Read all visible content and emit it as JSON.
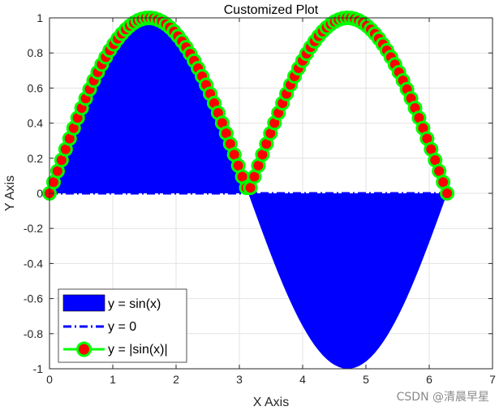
{
  "chart_data": {
    "type": "line",
    "title": "Customized Plot",
    "xlabel": "X Axis",
    "ylabel": "Y Axis",
    "xlim": [
      0,
      7
    ],
    "ylim": [
      -1,
      1
    ],
    "xticks": [
      "0",
      "1",
      "2",
      "3",
      "4",
      "5",
      "6",
      "7"
    ],
    "yticks": [
      "-1",
      "-0.8",
      "-0.6",
      "-0.4",
      "-0.2",
      "0",
      "0.2",
      "0.4",
      "0.6",
      "0.8",
      "1"
    ],
    "grid": true,
    "legend_position": "bottom-left",
    "sample_count": 100,
    "x_range": [
      0,
      6.2832
    ],
    "series": [
      {
        "name": "y = sin(x)",
        "style": "filled area",
        "color": "#0000ff"
      },
      {
        "name": "y = 0",
        "style": "dash-dot line",
        "color": "#0000ff"
      },
      {
        "name": "y = |sin(x)|",
        "style": "line with circle markers",
        "color": "#00ff00",
        "marker_face": "#ff0000",
        "marker_edge": "#00ff00"
      }
    ]
  },
  "watermark": "CSDN @清晨早星"
}
